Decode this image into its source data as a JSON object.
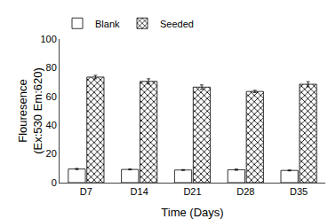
{
  "chart_data": {
    "type": "bar",
    "xlabel": "Time (Days)",
    "ylabel": "Flouresence\n(Ex:530 Em:620)",
    "categories": [
      "D7",
      "D14",
      "D21",
      "D28",
      "D35"
    ],
    "series": [
      {
        "name": "Blank",
        "color": "#ffffff",
        "values": [
          9.5,
          9.2,
          8.8,
          9.0,
          8.5
        ],
        "errors": [
          0.4,
          0.3,
          0.3,
          0.4,
          0.3
        ]
      },
      {
        "name": "Seeded",
        "color": "#ffffff",
        "values": [
          73.5,
          70.5,
          66.5,
          63.5,
          68.5
        ],
        "errors": [
          1.2,
          1.8,
          1.5,
          0.8,
          1.8
        ]
      }
    ],
    "ylim": [
      0,
      100
    ],
    "yticks": [
      0,
      20,
      40,
      60,
      80,
      100
    ],
    "grid": false,
    "legend": "upper left"
  }
}
